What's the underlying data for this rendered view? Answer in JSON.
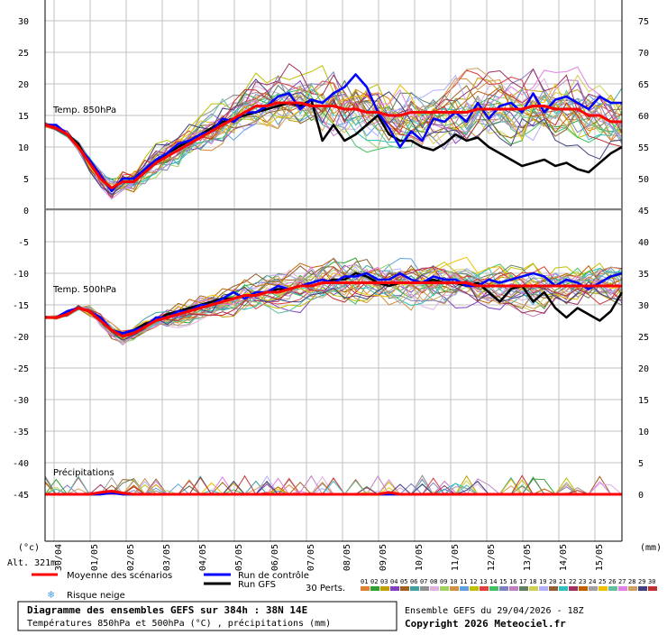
{
  "chart_data": {
    "type": "line",
    "panels": [
      {
        "label": "Temp. 850hPa"
      },
      {
        "label": "Temp. 500hPa"
      },
      {
        "label": "Précipitations"
      }
    ],
    "left_axis": {
      "unit": "(°c)",
      "ticks": [
        30,
        25,
        20,
        15,
        10,
        5,
        0,
        -5,
        -10,
        -15,
        -20,
        -25,
        -30,
        -35,
        -40,
        -45
      ]
    },
    "right_axis": {
      "unit": "(mm)",
      "ticks": [
        75,
        70,
        65,
        60,
        55,
        50,
        45,
        40,
        35,
        30,
        25,
        20,
        15,
        10,
        5,
        0
      ]
    },
    "x_ticks": [
      "30/04",
      "01/05",
      "02/05",
      "03/05",
      "04/05",
      "05/05",
      "06/05",
      "07/05",
      "08/05",
      "09/05",
      "10/05",
      "11/05",
      "12/05",
      "13/05",
      "14/05",
      "15/05"
    ],
    "x_first": "2026-04-30",
    "x_step_days": 1,
    "ylim": [
      -45,
      30
    ],
    "y_grid_step": 5,
    "series": [
      {
        "name": "Moyenne des scénarios",
        "color": "#ff0000",
        "t850": [
          13.5,
          13,
          12,
          10,
          7.5,
          5,
          3.5,
          4.5,
          4.5,
          6,
          7.5,
          8.5,
          9.5,
          10.5,
          11.5,
          12.5,
          13.5,
          14.5,
          15.5,
          16.5,
          16.5,
          17,
          17,
          17,
          16.5,
          16.5,
          16.5,
          16,
          16,
          15.5,
          15.5,
          15,
          15,
          15.5,
          15.5,
          15.5,
          15.5,
          15.5,
          15.5,
          16,
          16,
          16,
          16,
          16,
          16.5,
          16.5,
          16,
          16,
          16,
          15,
          15,
          14,
          14
        ],
        "t500": [
          -17,
          -17,
          -16.5,
          -15.5,
          -16,
          -17.5,
          -19,
          -20,
          -19.5,
          -18.5,
          -17.5,
          -17,
          -16.5,
          -16,
          -15.5,
          -15,
          -14.5,
          -14,
          -13.5,
          -13.5,
          -13,
          -13,
          -12.5,
          -12,
          -12,
          -11.5,
          -11.5,
          -11.5,
          -11.5,
          -11.5,
          -11.5,
          -11.5,
          -11.5,
          -11.5,
          -11.5,
          -11.5,
          -11.5,
          -11.5,
          -11.5,
          -12,
          -12,
          -12,
          -12,
          -12,
          -12,
          -12,
          -12,
          -12,
          -12,
          -12,
          -12,
          -12,
          -12
        ],
        "precip": [
          0,
          0,
          0,
          0,
          0,
          0.3,
          0.5,
          0.2,
          0,
          0,
          0,
          0,
          0,
          0,
          0,
          0,
          0,
          0,
          0,
          0,
          0,
          0,
          0,
          0,
          0,
          0,
          0,
          0,
          0,
          0,
          0,
          0.3,
          0,
          0,
          0,
          0,
          0,
          0,
          0,
          0,
          0,
          0,
          0,
          0,
          0,
          0,
          0,
          0,
          0,
          0,
          0,
          0,
          0
        ]
      },
      {
        "name": "Run de contrôle",
        "color": "#0000ff",
        "t850": [
          13.5,
          13.5,
          12,
          10,
          8,
          5.5,
          3,
          5,
          5,
          6.5,
          8,
          9,
          10.5,
          11,
          12,
          12.5,
          14.5,
          14,
          15.5,
          15.5,
          16.5,
          18,
          18.5,
          16,
          17.5,
          17,
          18.5,
          19.5,
          21.5,
          19.5,
          15.5,
          13,
          10,
          12.5,
          11,
          14.5,
          14,
          15.5,
          14,
          17,
          14.5,
          16.5,
          17,
          15.5,
          18.5,
          15.5,
          17.5,
          18,
          17,
          16,
          18,
          17,
          17
        ],
        "t500": [
          -17,
          -17,
          -16,
          -15.5,
          -16,
          -17,
          -19,
          -19.5,
          -19,
          -18.5,
          -17,
          -17,
          -16,
          -16,
          -15,
          -15,
          -14,
          -13,
          -14,
          -13,
          -13,
          -12,
          -12.5,
          -12,
          -11.5,
          -11,
          -11.5,
          -10.5,
          -10.5,
          -10,
          -11,
          -11,
          -10,
          -11,
          -11.5,
          -10.5,
          -11,
          -11,
          -12,
          -12,
          -11,
          -11.5,
          -11,
          -10.5,
          -10,
          -10.5,
          -12,
          -11,
          -11.5,
          -12.5,
          -11.5,
          -10.5,
          -10
        ],
        "precip": [
          0,
          0,
          0,
          0,
          0,
          0,
          0.2,
          0,
          0,
          0,
          0,
          0,
          0,
          0,
          0,
          0,
          0,
          0,
          0,
          0,
          0,
          0,
          0,
          0,
          0,
          0,
          0,
          0,
          0,
          0,
          0,
          0,
          0,
          0,
          0,
          0,
          0,
          0,
          0,
          0,
          0,
          0,
          0,
          0,
          0,
          0,
          0,
          0,
          0,
          0,
          0,
          0,
          0
        ]
      },
      {
        "name": "Run GFS",
        "color": "#000000",
        "t850": [
          13.5,
          13,
          12,
          10.5,
          7.5,
          5,
          3.5,
          4.5,
          4.5,
          6.5,
          7.5,
          9,
          10,
          11,
          12,
          13,
          14,
          14.5,
          15,
          15.5,
          16,
          16.5,
          17,
          16.5,
          17.5,
          11,
          13.5,
          11,
          12,
          13.5,
          15,
          12,
          11,
          11,
          10,
          9.5,
          10.5,
          12,
          11,
          11.5,
          10,
          9,
          8,
          7,
          7.5,
          8,
          7,
          7.5,
          6.5,
          6,
          7.5,
          9,
          10
        ],
        "t500": [
          -17,
          -17,
          -16.5,
          -15.5,
          -16,
          -17.5,
          -19,
          -19.5,
          -19,
          -18,
          -17.5,
          -16.5,
          -16,
          -15.5,
          -15,
          -14.5,
          -14,
          -14,
          -13.5,
          -13.5,
          -13,
          -12.5,
          -12.5,
          -12,
          -12,
          -11.5,
          -11,
          -11,
          -10,
          -10.5,
          -11.5,
          -12,
          -11.5,
          -11.5,
          -11.5,
          -11,
          -11.5,
          -11.5,
          -12,
          -11.5,
          -13,
          -14.5,
          -12.5,
          -12,
          -14.5,
          -13,
          -15.5,
          -17,
          -15.5,
          -16.5,
          -17.5,
          -16,
          -13
        ],
        "precip": [
          0,
          0,
          0,
          0,
          0,
          0,
          0.3,
          0,
          0,
          0,
          0,
          0,
          0,
          0,
          0,
          0,
          0,
          0,
          0,
          0,
          0,
          0,
          0,
          0,
          0,
          0,
          0,
          0,
          0,
          0,
          0,
          0,
          0,
          0,
          0,
          0,
          0,
          0,
          0,
          0,
          0,
          0,
          0,
          0,
          0,
          0,
          0,
          0,
          0,
          0,
          0,
          0,
          0
        ]
      }
    ]
  },
  "legend": {
    "alt_label": "Alt. 321m",
    "mean_label": "Moyenne des scénarios",
    "control_label": "Run de contrôle",
    "gfs_label": "Run GFS",
    "snow_label": "Risque neige",
    "perts_label": "30 Perts.",
    "pert_numbers": [
      "01",
      "02",
      "03",
      "04",
      "05",
      "06",
      "07",
      "08",
      "09",
      "10",
      "11",
      "12",
      "13",
      "14",
      "15",
      "16",
      "17",
      "18",
      "19",
      "20",
      "21",
      "22",
      "23",
      "24",
      "25",
      "26",
      "27",
      "28",
      "29",
      "30"
    ],
    "pert_colors": [
      "#e08030",
      "#30a030",
      "#c0a000",
      "#8040c0",
      "#a06020",
      "#40a0a0",
      "#909090",
      "#e0b0e0",
      "#a0d060",
      "#d09040",
      "#60a0e0",
      "#c0c000",
      "#e04040",
      "#40c060",
      "#8080c0",
      "#c080c0",
      "#608060",
      "#d0d050",
      "#b0b0ff",
      "#906030",
      "#30c0c0",
      "#a03060",
      "#c06000",
      "#a0a0a0",
      "#f0c000",
      "#60c0a0",
      "#e080e0",
      "#d0a060",
      "#404080",
      "#c03030"
    ]
  },
  "footer": {
    "title": "Diagramme des ensembles GEFS sur 384h : 38N 14E",
    "subtitle": "Températures 850hPa et 500hPa (°C) , précipitations (mm)",
    "run_info": "Ensemble GEFS du 29/04/2026 - 18Z",
    "copyright": "Copyright 2026 Meteociel.fr"
  }
}
